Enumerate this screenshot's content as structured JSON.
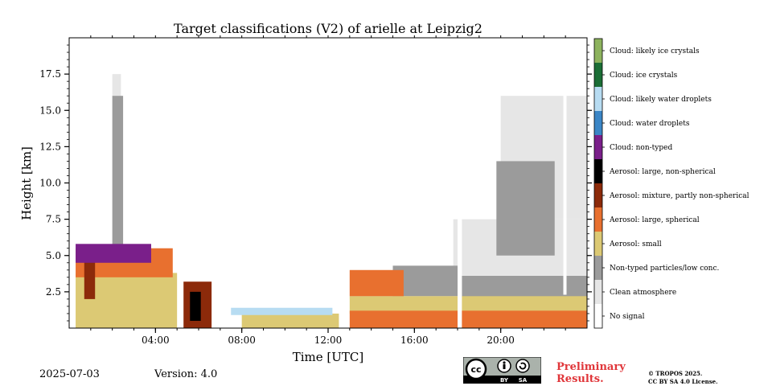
{
  "chart_data": {
    "type": "heatmap",
    "title": "Target classifications (V2) of arielle at Leipzig2",
    "xlabel": "Time [UTC]",
    "ylabel": "Height [km]",
    "xlim": [
      0,
      24
    ],
    "ylim": [
      0,
      20
    ],
    "x_ticks": [
      {
        "value": 4,
        "label": "04:00"
      },
      {
        "value": 8,
        "label": "08:00"
      },
      {
        "value": 12,
        "label": "12:00"
      },
      {
        "value": 16,
        "label": "16:00"
      },
      {
        "value": 20,
        "label": "20:00"
      }
    ],
    "y_ticks": [
      {
        "value": 2.5,
        "label": "2.5"
      },
      {
        "value": 5.0,
        "label": "5.0"
      },
      {
        "value": 7.5,
        "label": "7.5"
      },
      {
        "value": 10.0,
        "label": "10.0"
      },
      {
        "value": 12.5,
        "label": "12.5"
      },
      {
        "value": 15.0,
        "label": "15.0"
      },
      {
        "value": 17.5,
        "label": "17.5"
      }
    ],
    "categories": [
      {
        "label": "No signal",
        "color": "#ffffff"
      },
      {
        "label": "Clean atmosphere",
        "color": "#e6e6e6"
      },
      {
        "label": "Non-typed particles/low conc.",
        "color": "#9b9b9b"
      },
      {
        "label": "Aerosol: small",
        "color": "#dcc974"
      },
      {
        "label": "Aerosol: large, spherical",
        "color": "#e8702f"
      },
      {
        "label": "Aerosol: mixture, partly non-spherical",
        "color": "#8c2a0a"
      },
      {
        "label": "Aerosol: large, non-spherical",
        "color": "#000000"
      },
      {
        "label": "Cloud: non-typed",
        "color": "#7a1f8a"
      },
      {
        "label": "Cloud: water droplets",
        "color": "#3b86c6"
      },
      {
        "label": "Cloud: likely water droplets",
        "color": "#b7dcf2"
      },
      {
        "label": "Cloud: ice crystals",
        "color": "#1b6e36"
      },
      {
        "label": "Cloud: likely ice crystals",
        "color": "#8db35e"
      }
    ],
    "regions": [
      {
        "class": "Clean atmosphere",
        "x": [
          17.8,
          24
        ],
        "y": [
          2.2,
          7.5
        ]
      },
      {
        "class": "Clean atmosphere",
        "x": [
          20.0,
          24
        ],
        "y": [
          7.5,
          16.0
        ]
      },
      {
        "class": "Clean atmosphere",
        "x": [
          13.0,
          17.8
        ],
        "y": [
          2.0,
          4.0
        ]
      },
      {
        "class": "Clean atmosphere",
        "x": [
          2.0,
          2.4
        ],
        "y": [
          5.0,
          17.5
        ]
      },
      {
        "class": "Non-typed particles/low conc.",
        "x": [
          18.2,
          24
        ],
        "y": [
          2.0,
          3.6
        ]
      },
      {
        "class": "Non-typed particles/low conc.",
        "x": [
          19.8,
          22.5
        ],
        "y": [
          5.0,
          11.5
        ]
      },
      {
        "class": "Non-typed particles/low conc.",
        "x": [
          15.0,
          18.0
        ],
        "y": [
          2.2,
          4.3
        ]
      },
      {
        "class": "Non-typed particles/low conc.",
        "x": [
          2.0,
          2.5
        ],
        "y": [
          4.5,
          16.0
        ]
      },
      {
        "class": "Aerosol: small",
        "x": [
          0.3,
          5.0
        ],
        "y": [
          0.0,
          3.8
        ]
      },
      {
        "class": "Aerosol: small",
        "x": [
          8.0,
          12.5
        ],
        "y": [
          0.0,
          1.0
        ]
      },
      {
        "class": "Aerosol: small",
        "x": [
          13.0,
          24
        ],
        "y": [
          1.0,
          2.2
        ]
      },
      {
        "class": "Aerosol: large, spherical",
        "x": [
          13.0,
          24
        ],
        "y": [
          0.0,
          1.2
        ]
      },
      {
        "class": "Aerosol: large, spherical",
        "x": [
          13.0,
          15.5
        ],
        "y": [
          2.2,
          4.0
        ]
      },
      {
        "class": "Aerosol: large, spherical",
        "x": [
          0.3,
          4.8
        ],
        "y": [
          3.5,
          5.5
        ]
      },
      {
        "class": "Aerosol: mixture, partly non-spherical",
        "x": [
          5.3,
          6.6
        ],
        "y": [
          0.0,
          3.2
        ]
      },
      {
        "class": "Aerosol: mixture, partly non-spherical",
        "x": [
          0.7,
          1.2
        ],
        "y": [
          2.0,
          5.0
        ]
      },
      {
        "class": "Aerosol: large, non-spherical",
        "x": [
          5.6,
          6.1
        ],
        "y": [
          0.5,
          2.5
        ]
      },
      {
        "class": "Cloud: non-typed",
        "x": [
          0.3,
          3.8
        ],
        "y": [
          4.5,
          5.8
        ]
      },
      {
        "class": "Cloud: likely water droplets",
        "x": [
          7.5,
          12.2
        ],
        "y": [
          0.9,
          1.4
        ]
      },
      {
        "class": "No signal",
        "x": [
          5.05,
          5.2
        ],
        "y": [
          0.0,
          20.0
        ]
      },
      {
        "class": "No signal",
        "x": [
          12.55,
          12.75
        ],
        "y": [
          0.0,
          20.0
        ]
      },
      {
        "class": "No signal",
        "x": [
          18.0,
          18.2
        ],
        "y": [
          0.0,
          20.0
        ]
      },
      {
        "class": "No signal",
        "x": [
          22.9,
          23.05
        ],
        "y": [
          2.3,
          20.0
        ]
      }
    ]
  },
  "footer": {
    "date": "2025-07-03",
    "version": "Version: 4.0",
    "preliminary_line1": "Preliminary",
    "preliminary_line2": "Results.",
    "license_line1": "© TROPOS 2025.",
    "license_line2": "CC BY SA 4.0 License.",
    "badge_text": [
      "cc",
      "BY",
      "SA"
    ]
  }
}
